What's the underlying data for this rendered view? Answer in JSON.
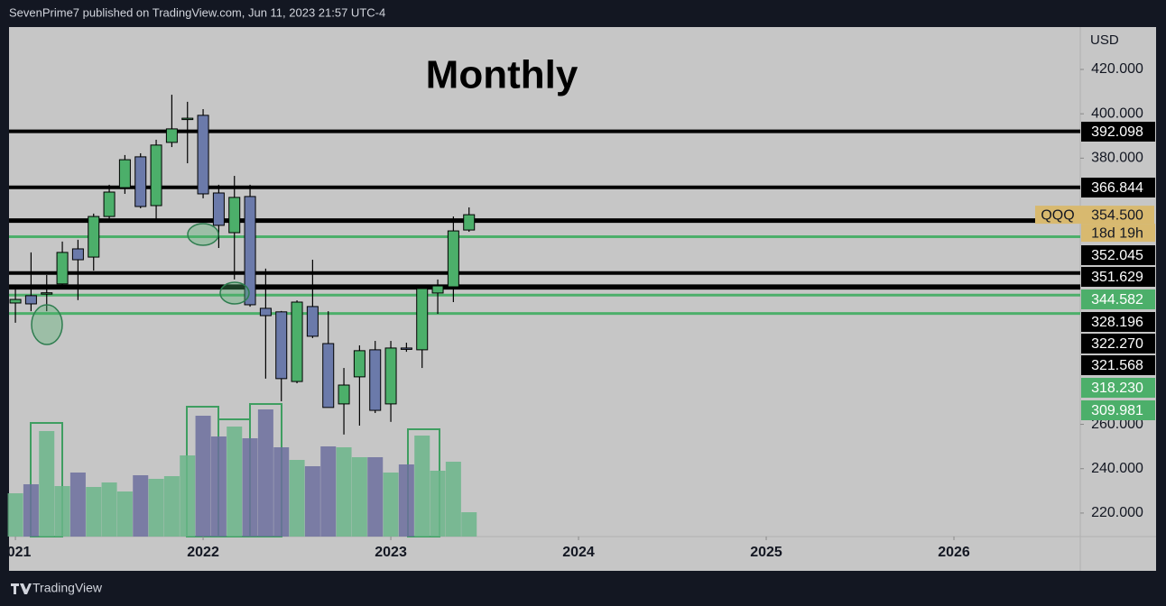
{
  "header": {
    "text": "SevenPrime7 published on TradingView.com, Jun 11, 2023 21:57 UTC-4"
  },
  "footer": {
    "brand": "TradingView"
  },
  "chart_data": {
    "type": "candlestick",
    "title": "Monthly",
    "currency": "USD",
    "x": [
      2021,
      2021.0833,
      2021.1667,
      2021.25,
      2021.3333,
      2021.4167,
      2021.5,
      2021.5833,
      2021.6667,
      2021.75,
      2021.8333,
      2021.9167,
      2022,
      2022.0833,
      2022.1667,
      2022.25,
      2022.3333,
      2022.4167,
      2022.5,
      2022.5833,
      2022.6667,
      2022.75,
      2022.8333,
      2022.9167,
      2023,
      2023.0833,
      2023.1667,
      2023.25,
      2023.3333,
      2023.4167
    ],
    "open": [
      314.7,
      318,
      319,
      323.3,
      339.1,
      335.4,
      353.7,
      366.7,
      380.6,
      358.6,
      387.1,
      397.9,
      399.3,
      364.3,
      346.4,
      362.7,
      312.3,
      310.7,
      279.3,
      313.1,
      296.4,
      269.2,
      281.4,
      293.6,
      269.2,
      294.4,
      293.6,
      319.2,
      322,
      347.6
    ],
    "high": [
      322,
      337.5,
      327.3,
      342.4,
      343.2,
      355,
      368,
      381.4,
      382.2,
      388.3,
      408.6,
      405.4,
      402.1,
      368,
      372,
      368,
      330.2,
      311.1,
      315.9,
      334.2,
      311,
      285.4,
      295.6,
      297.6,
      297.6,
      296.8,
      322,
      325.3,
      353.7,
      357.8
    ],
    "low": [
      305.8,
      311,
      311,
      322,
      316,
      329.3,
      351.7,
      363.9,
      357.4,
      351.3,
      385,
      377.7,
      361.9,
      339.5,
      325.3,
      313,
      280.6,
      270.4,
      278.5,
      298.9,
      267.6,
      255.4,
      259.4,
      265.1,
      261.1,
      292.7,
      285.4,
      309.8,
      315.1,
      346.8
    ],
    "close": [
      316.3,
      314.3,
      319.3,
      337.5,
      334.2,
      353.7,
      364.7,
      379.3,
      358.2,
      385.9,
      393.2,
      398,
      363.9,
      349.7,
      362.3,
      313.9,
      309,
      280.6,
      315.1,
      299.7,
      267.6,
      277.7,
      293.2,
      266.3,
      294.4,
      294,
      321.2,
      322.4,
      347.2,
      354.5
    ],
    "volume": [
      48,
      58,
      117,
      56,
      71,
      55,
      60,
      50,
      68,
      64,
      67,
      90,
      134,
      111,
      122,
      109,
      141,
      99,
      85,
      78,
      100,
      99,
      88,
      88,
      71,
      80,
      112,
      73,
      83,
      27
    ],
    "up_color": "#4caf6a",
    "down_color": "#6b7aaa",
    "volume_up_color": "#6bb58a",
    "volume_down_color": "#6c6f9e",
    "ylim": [
      209.4,
      439.1
    ],
    "yticks": [
      {
        "value": 220,
        "label": "220.000"
      },
      {
        "value": 240,
        "label": "240.000"
      },
      {
        "value": 260,
        "label": "260.000"
      },
      {
        "value": 380,
        "label": "380.000"
      },
      {
        "value": 400,
        "label": "400.000"
      },
      {
        "value": 420,
        "label": "420.000"
      }
    ],
    "xlim": [
      2020.966,
      2026.673
    ],
    "xticks": [
      {
        "value": 2021,
        "label": "021"
      },
      2022,
      2023,
      2024,
      2025,
      2026
    ],
    "levels": {
      "values": [
        392.098,
        366.844,
        352.045,
        351.629,
        344.582,
        328.196,
        322.27,
        321.568,
        318.23,
        309.981
      ],
      "value_labels": [
        "392.098",
        "366.844",
        "352.045",
        "351.629",
        "344.582",
        "328.196",
        "322.270",
        "321.568",
        "318.230",
        "309.981"
      ],
      "colors": [
        "#000000",
        "#000000",
        "#000000",
        "#000000",
        "#4caf6a",
        "#000000",
        "#000000",
        "#000000",
        "#4caf6a",
        "#4caf6a"
      ]
    },
    "last": {
      "symbol": "QQQ",
      "value": 354.5,
      "value_label": "354.500",
      "countdown": "18d 19h",
      "color": "#d8b96f"
    }
  }
}
